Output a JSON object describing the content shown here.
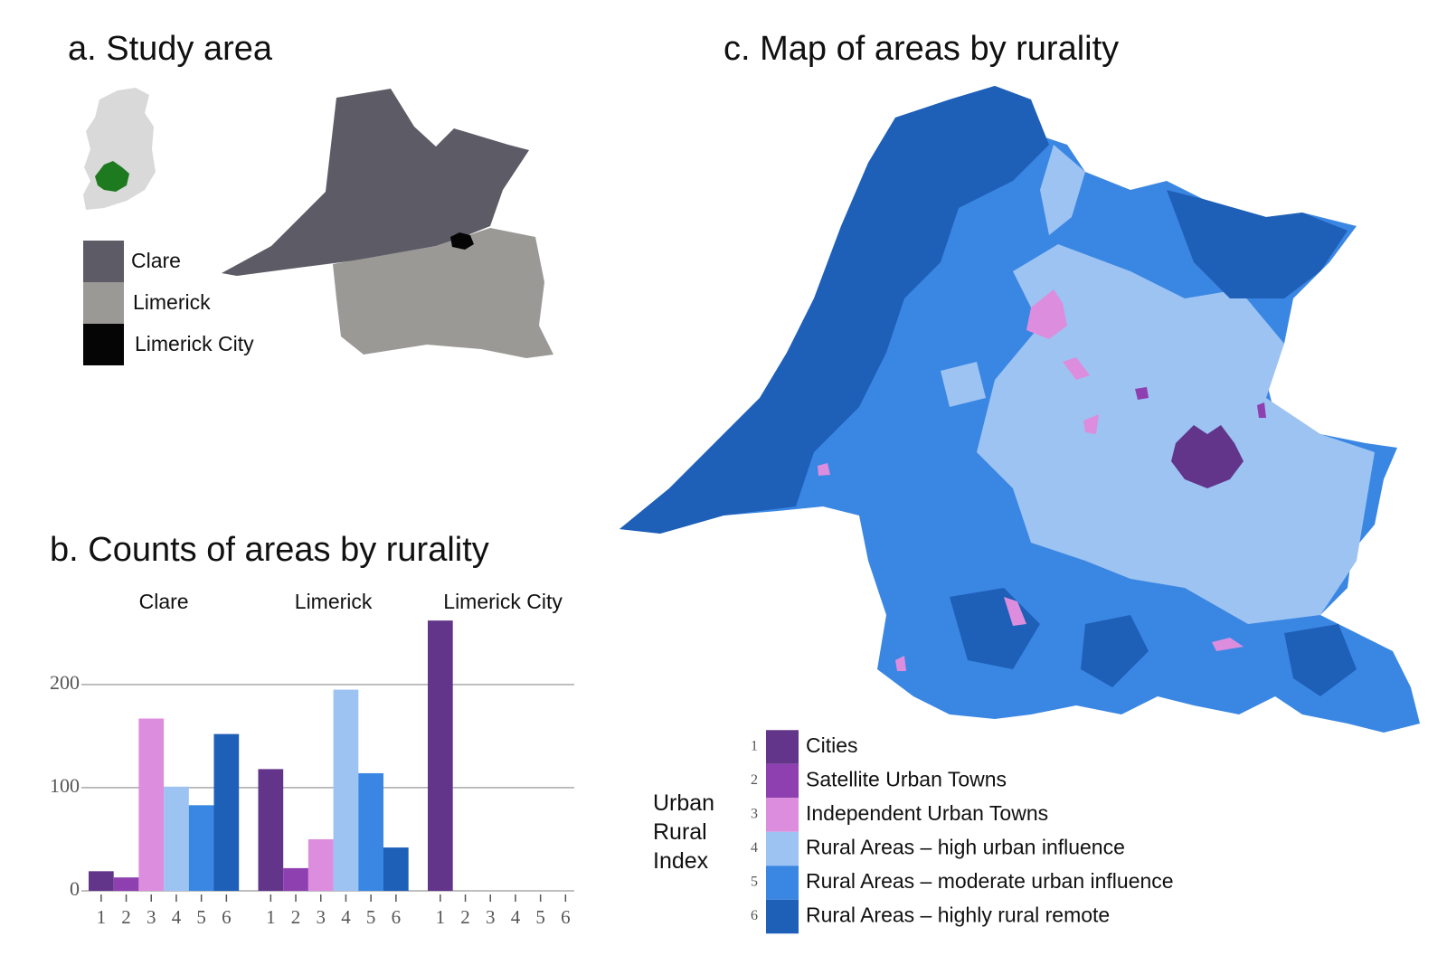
{
  "panel_a": {
    "title": "a. Study area",
    "legend": [
      {
        "label": "Clare",
        "color": "#5c5b66"
      },
      {
        "label": "Limerick",
        "color": "#9a9996"
      },
      {
        "label": "Limerick City",
        "color": "#050505"
      }
    ]
  },
  "panel_c": {
    "title": "c. Map of areas by rurality"
  },
  "chart_data": {
    "type": "bar",
    "title": "b. Counts of areas by rurality",
    "categories": [
      "1",
      "2",
      "3",
      "4",
      "5",
      "6"
    ],
    "colors": [
      "#62358a",
      "#8e3fb0",
      "#dd8ddd",
      "#9dc3f2",
      "#3a87e3",
      "#1e5fb8"
    ],
    "series": [
      {
        "name": "Clare",
        "values": [
          19,
          13,
          167,
          101,
          83,
          152
        ]
      },
      {
        "name": "Limerick",
        "values": [
          118,
          22,
          50,
          195,
          114,
          42
        ]
      },
      {
        "name": "Limerick City",
        "values": [
          262,
          0,
          0,
          0,
          0,
          0
        ]
      }
    ],
    "ylim": [
      0,
      270
    ],
    "yticks": [
      0,
      100,
      200
    ],
    "grid": true,
    "legend": {
      "title": "Urban Rural Index",
      "labels": [
        "Cities",
        "Satellite Urban Towns",
        "Independent Urban Towns",
        "Rural Areas – high urban influence",
        "Rural Areas – moderate urban influence",
        "Rural Areas – highly rural remote"
      ]
    }
  }
}
